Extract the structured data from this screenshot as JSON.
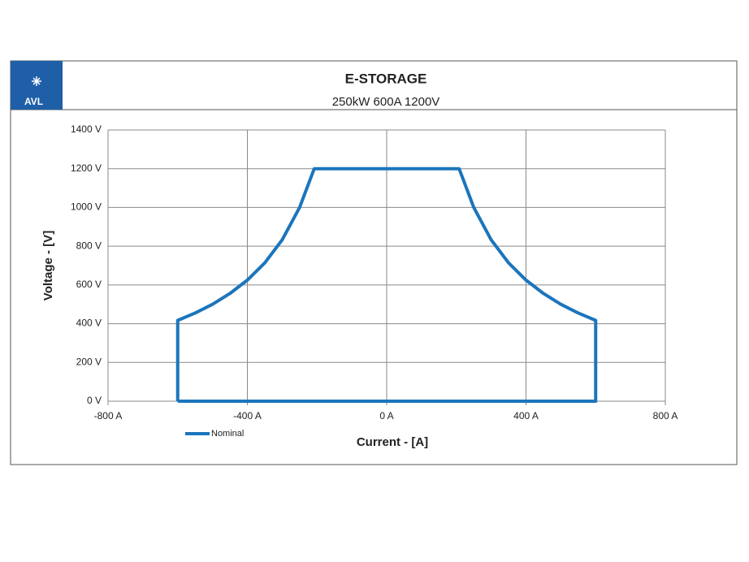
{
  "logo": "AVL",
  "chart_data": {
    "type": "line",
    "title": "E-STORAGE",
    "subtitle": "250kW 600A 1200V",
    "x_label": "Current - [A]",
    "y_label": "Voltage - [V]",
    "x": [
      -600,
      -600,
      -550,
      -500,
      -450,
      -400,
      -350,
      -300,
      -250,
      -208,
      208,
      250,
      300,
      350,
      400,
      450,
      500,
      550,
      600,
      600,
      -600
    ],
    "series": [
      {
        "name": "Nominal",
        "color": "#1b75bc",
        "values": [
          0,
          417,
          455,
          500,
          556,
          625,
          714,
          833,
          1000,
          1200,
          1200,
          1000,
          833,
          714,
          625,
          556,
          500,
          455,
          417,
          0,
          0
        ]
      }
    ],
    "xlim": [
      -800,
      800
    ],
    "xticks": [
      {
        "value": -800,
        "label": "-800 A"
      },
      {
        "value": -400,
        "label": "-400 A"
      },
      {
        "value": 0,
        "label": "0 A"
      },
      {
        "value": 400,
        "label": "400 A"
      },
      {
        "value": 800,
        "label": "800 A"
      }
    ],
    "ylim": [
      0,
      1400
    ],
    "yticks": [
      {
        "value": 0,
        "label": "0 V"
      },
      {
        "value": 200,
        "label": "200 V"
      },
      {
        "value": 400,
        "label": "400 V"
      },
      {
        "value": 600,
        "label": "600 V"
      },
      {
        "value": 800,
        "label": "800 V"
      },
      {
        "value": 1000,
        "label": "1000 V"
      },
      {
        "value": 1200,
        "label": "1200 V"
      },
      {
        "value": 1400,
        "label": "1400 V"
      }
    ],
    "grid": true,
    "legend": "bottom-left"
  }
}
